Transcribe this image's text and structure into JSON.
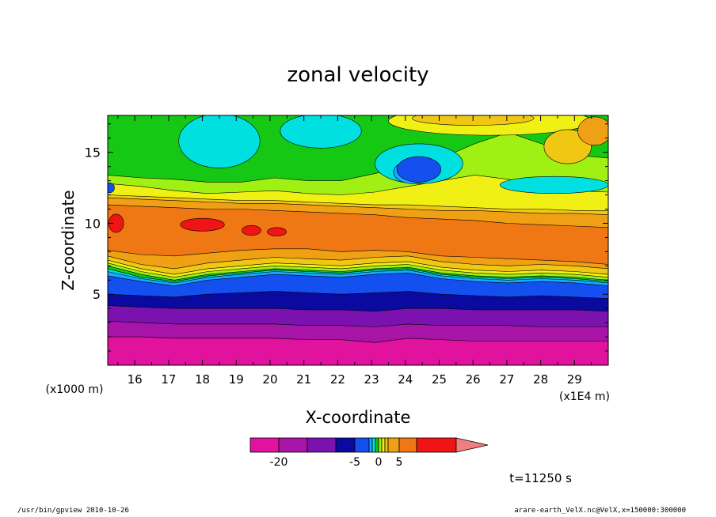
{
  "chart_data": {
    "type": "heatmap",
    "title": "zonal velocity",
    "xlabel": "X-coordinate",
    "ylabel": "Z-coordinate",
    "x_unit": "(x1E4 m)",
    "y_unit": "(x1000 m)",
    "xlim": [
      15.2,
      30.0
    ],
    "ylim": [
      0.0,
      17.6
    ],
    "x_ticks": [
      16,
      17,
      18,
      19,
      20,
      21,
      22,
      23,
      24,
      25,
      26,
      27,
      28,
      29
    ],
    "y_ticks": [
      5,
      10,
      15
    ],
    "time_label": "t=11250 s",
    "colorbar": {
      "levels": [
        -25,
        -20,
        -15,
        -10,
        -5,
        -3,
        -2,
        -1,
        0,
        1,
        2,
        3,
        5,
        10,
        15
      ],
      "colors": [
        "#e0129e",
        "#a814a8",
        "#7b12b0",
        "#0a0aa0",
        "#1450f0",
        "#14a8ff",
        "#00e0e0",
        "#14c814",
        "#a0f014",
        "#f0f014",
        "#f0c814",
        "#f0a014",
        "#f07814",
        "#f01414",
        "#f08080"
      ],
      "tick_values": [
        -20,
        -5,
        0,
        5
      ],
      "tick_labels": [
        "-20",
        "-5",
        "0",
        "5"
      ]
    },
    "bands": [
      {
        "value": -25,
        "color": "#e0129e",
        "z_top": [
          2.0,
          2.0,
          1.9,
          1.9,
          1.9,
          1.9,
          1.8,
          1.8,
          1.6,
          1.9,
          1.8,
          1.7,
          1.7,
          1.7,
          1.7,
          1.7
        ]
      },
      {
        "value": -20,
        "color": "#a814a8",
        "z_top": [
          3.1,
          3.0,
          2.9,
          2.9,
          2.9,
          2.9,
          2.8,
          2.8,
          2.7,
          2.9,
          2.8,
          2.8,
          2.8,
          2.7,
          2.7,
          2.7
        ]
      },
      {
        "value": -15,
        "color": "#7b12b0",
        "z_top": [
          4.2,
          4.1,
          4.0,
          4.0,
          4.0,
          4.0,
          3.9,
          3.9,
          3.8,
          4.0,
          4.0,
          3.9,
          3.9,
          3.9,
          3.9,
          3.8
        ]
      },
      {
        "value": -10,
        "color": "#0a0aa0",
        "z_top": [
          5.0,
          4.9,
          4.8,
          5.0,
          5.1,
          5.2,
          5.1,
          5.0,
          5.1,
          5.2,
          5.0,
          4.9,
          4.8,
          4.9,
          4.8,
          4.7
        ]
      },
      {
        "value": -5,
        "color": "#1450f0",
        "z_top": [
          6.3,
          5.9,
          5.6,
          6.0,
          6.2,
          6.4,
          6.3,
          6.2,
          6.4,
          6.5,
          6.1,
          5.9,
          5.8,
          5.9,
          5.8,
          5.6
        ]
      },
      {
        "value": -3,
        "color": "#14a8ff",
        "z_top": [
          6.6,
          6.1,
          5.8,
          6.2,
          6.4,
          6.6,
          6.5,
          6.4,
          6.6,
          6.7,
          6.3,
          6.1,
          6.0,
          6.1,
          6.0,
          5.8
        ]
      },
      {
        "value": -2,
        "color": "#00e0e0",
        "z_top": [
          6.8,
          6.2,
          5.9,
          6.3,
          6.5,
          6.7,
          6.6,
          6.5,
          6.7,
          6.8,
          6.4,
          6.2,
          6.1,
          6.2,
          6.1,
          5.9
        ]
      },
      {
        "value": -1,
        "color": "#14c814",
        "z_top": [
          7.0,
          6.4,
          6.0,
          6.4,
          6.6,
          6.8,
          6.7,
          6.6,
          6.8,
          6.9,
          6.5,
          6.3,
          6.2,
          6.3,
          6.2,
          6.0
        ]
      },
      {
        "value": 0,
        "color": "#a0f014",
        "z_top": [
          7.2,
          6.6,
          6.2,
          6.6,
          6.8,
          7.0,
          6.9,
          6.8,
          7.0,
          7.1,
          6.7,
          6.5,
          6.4,
          6.5,
          6.4,
          6.2
        ]
      },
      {
        "value": 1,
        "color": "#f0f014",
        "z_top": [
          7.4,
          6.8,
          6.4,
          6.8,
          7.0,
          7.2,
          7.1,
          7.0,
          7.2,
          7.3,
          6.9,
          6.7,
          6.6,
          6.7,
          6.6,
          6.4
        ]
      },
      {
        "value": 2,
        "color": "#f0c814",
        "z_top": [
          7.7,
          7.1,
          6.8,
          7.2,
          7.4,
          7.6,
          7.5,
          7.4,
          7.6,
          7.7,
          7.3,
          7.1,
          7.0,
          7.1,
          7.0,
          6.8
        ]
      },
      {
        "value": 3,
        "color": "#f0a014",
        "z_top": [
          8.1,
          7.8,
          7.7,
          7.9,
          8.1,
          8.2,
          8.2,
          8.0,
          8.1,
          8.0,
          7.7,
          7.6,
          7.5,
          7.4,
          7.3,
          7.1
        ]
      },
      {
        "value": 5,
        "color": "#f07814",
        "z_top": [
          11.3,
          11.2,
          11.1,
          11.0,
          11.0,
          10.9,
          10.8,
          10.7,
          10.6,
          10.4,
          10.3,
          10.2,
          10.0,
          9.9,
          9.8,
          9.7
        ]
      },
      {
        "value": 3,
        "color": "#f0a014",
        "z_top": [
          11.8,
          11.7,
          11.6,
          11.5,
          11.4,
          11.4,
          11.3,
          11.2,
          11.1,
          11.0,
          10.9,
          10.9,
          10.8,
          10.7,
          10.7,
          10.6
        ]
      },
      {
        "value": 2,
        "color": "#f0c814",
        "z_top": [
          12.0,
          11.9,
          11.8,
          11.7,
          11.6,
          11.6,
          11.5,
          11.4,
          11.3,
          11.3,
          11.2,
          11.1,
          11.0,
          11.0,
          10.9,
          10.9
        ]
      },
      {
        "value": 1,
        "color": "#f0f014",
        "z_top": [
          12.8,
          12.6,
          12.3,
          12.1,
          12.2,
          12.3,
          12.1,
          12.0,
          12.2,
          12.6,
          13.0,
          13.4,
          13.1,
          12.6,
          12.3,
          12.2
        ]
      },
      {
        "value": 0,
        "color": "#a0f014",
        "z_top": [
          13.4,
          13.2,
          13.1,
          12.9,
          12.9,
          13.2,
          13.0,
          13.0,
          13.5,
          14.0,
          14.6,
          15.6,
          16.4,
          15.6,
          14.8,
          14.6
        ]
      },
      {
        "value": -1,
        "color": "#14c814",
        "z_top": [
          17.6,
          17.6,
          17.6,
          17.6,
          17.6,
          17.6,
          17.6,
          17.6,
          17.6,
          17.6,
          17.6,
          17.6,
          17.6,
          17.6,
          17.6,
          17.6
        ]
      }
    ],
    "blobs": [
      {
        "value": 10,
        "color": "#f01414",
        "x": 15.45,
        "z": 10.0,
        "rx": 0.22,
        "rz": 0.65
      },
      {
        "value": 10,
        "color": "#f01414",
        "x": 18.0,
        "z": 9.9,
        "rx": 0.65,
        "rz": 0.45
      },
      {
        "value": 10,
        "color": "#f01414",
        "x": 19.45,
        "z": 9.5,
        "rx": 0.28,
        "rz": 0.35
      },
      {
        "value": 10,
        "color": "#f01414",
        "x": 20.2,
        "z": 9.4,
        "rx": 0.28,
        "rz": 0.3
      },
      {
        "value": -2,
        "color": "#00e0e0",
        "x": 18.5,
        "z": 15.8,
        "rx": 1.2,
        "rz": 1.9
      },
      {
        "value": -2,
        "color": "#00e0e0",
        "x": 21.5,
        "z": 16.5,
        "rx": 1.2,
        "rz": 1.2
      },
      {
        "value": -2,
        "color": "#00e0e0",
        "x": 24.4,
        "z": 14.2,
        "rx": 1.3,
        "rz": 1.4
      },
      {
        "value": -3,
        "color": "#14a8ff",
        "x": 24.2,
        "z": 13.6,
        "rx": 0.55,
        "rz": 0.8
      },
      {
        "value": -5,
        "color": "#1450f0",
        "x": 24.4,
        "z": 13.8,
        "rx": 0.65,
        "rz": 0.9
      },
      {
        "value": -2,
        "color": "#00e0e0",
        "x": 28.4,
        "z": 12.7,
        "rx": 1.6,
        "rz": 0.6
      },
      {
        "value": 1,
        "color": "#f0f014",
        "x": 26.5,
        "z": 17.2,
        "rx": 3.0,
        "rz": 1.0
      },
      {
        "value": 2,
        "color": "#f0c814",
        "x": 26.0,
        "z": 17.4,
        "rx": 1.8,
        "rz": 0.5
      },
      {
        "value": 2,
        "color": "#f0c814",
        "x": 28.8,
        "z": 15.4,
        "rx": 0.7,
        "rz": 1.2
      },
      {
        "value": 3,
        "color": "#f0a014",
        "x": 29.6,
        "z": 16.5,
        "rx": 0.5,
        "rz": 1.0
      },
      {
        "value": -5,
        "color": "#1450f0",
        "x": 15.25,
        "z": 12.5,
        "rx": 0.15,
        "rz": 0.35
      }
    ]
  },
  "footer": {
    "left": "/usr/bin/gpview   2010-10-26",
    "right": "arare-earth_VelX.nc@VelX,x=150000:300000"
  }
}
